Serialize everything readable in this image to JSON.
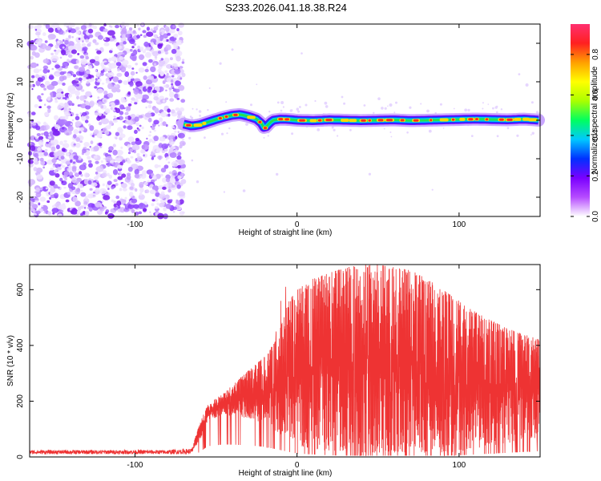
{
  "title": "S233.2026.041.18.38.R24",
  "chart_data": [
    {
      "type": "heatmap",
      "name": "spectrogram",
      "xlabel": "Height of straight line (km)",
      "ylabel": "Frequency (Hz)",
      "xlim": [
        -165,
        150
      ],
      "ylim": [
        -25,
        25
      ],
      "xticks": [
        -100,
        0,
        100
      ],
      "yticks": [
        -20,
        -10,
        0,
        10,
        20
      ],
      "noise_region_x": [
        -165,
        -70
      ],
      "signal_start_x": -70,
      "signal_ridge": {
        "x": [
          -70,
          -65,
          -60,
          -55,
          -50,
          -45,
          -40,
          -35,
          -30,
          -25,
          -22,
          -20,
          -18,
          -15,
          -10,
          -5,
          0,
          10,
          20,
          30,
          40,
          50,
          60,
          70,
          80,
          90,
          100,
          110,
          120,
          130,
          140,
          150
        ],
        "y": [
          -1.0,
          -1.5,
          -1.2,
          -0.5,
          0.2,
          0.8,
          1.3,
          1.5,
          1.0,
          0.3,
          -0.8,
          -2.2,
          -1.2,
          0.0,
          0.3,
          0.2,
          0.0,
          -0.1,
          0.1,
          0.0,
          -0.1,
          0.0,
          0.1,
          -0.1,
          0.0,
          0.1,
          0.2,
          0.3,
          0.2,
          0.1,
          0.3,
          0.0
        ]
      },
      "colorbar": {
        "label": "Normalized spectral amplitude",
        "range": [
          0,
          0.95
        ],
        "ticks": [
          "0.0",
          "0.2",
          "0.4",
          "0.6",
          "0.8"
        ],
        "tick_values": [
          0,
          0.2,
          0.4,
          0.6,
          0.8
        ],
        "colors": [
          "#ffffff",
          "#b64cff",
          "#7a00ff",
          "#0030ff",
          "#00c8ff",
          "#00ff60",
          "#aaff00",
          "#ffff00",
          "#ffa000",
          "#ff2020",
          "#ff3070"
        ]
      }
    },
    {
      "type": "line",
      "name": "snr",
      "xlabel": "Height of straight line (km)",
      "ylabel": "SNR (10 * v/v)",
      "xlim": [
        -165,
        150
      ],
      "ylim": [
        0,
        690
      ],
      "xticks": [
        -100,
        0,
        100
      ],
      "yticks": [
        0,
        200,
        400,
        600
      ],
      "color": "#ee3333",
      "envelope": {
        "x": [
          -165,
          -120,
          -80,
          -65,
          -60,
          -55,
          -45,
          -30,
          -20,
          -12,
          -5,
          0,
          10,
          20,
          30,
          40,
          50,
          60,
          70,
          80,
          90,
          100,
          110,
          120,
          130,
          140,
          150
        ],
        "low": [
          10,
          10,
          10,
          10,
          60,
          130,
          150,
          140,
          120,
          90,
          60,
          40,
          30,
          20,
          15,
          15,
          15,
          15,
          15,
          15,
          15,
          20,
          30,
          40,
          50,
          60,
          70
        ],
        "high": [
          25,
          25,
          25,
          30,
          120,
          190,
          230,
          310,
          360,
          430,
          560,
          600,
          640,
          660,
          680,
          690,
          690,
          680,
          670,
          640,
          600,
          560,
          520,
          490,
          460,
          440,
          420
        ]
      },
      "spikes": [
        {
          "x": -10,
          "y": 560
        },
        {
          "x": -7,
          "y": 610
        },
        {
          "x": -13,
          "y": 450
        }
      ]
    }
  ]
}
